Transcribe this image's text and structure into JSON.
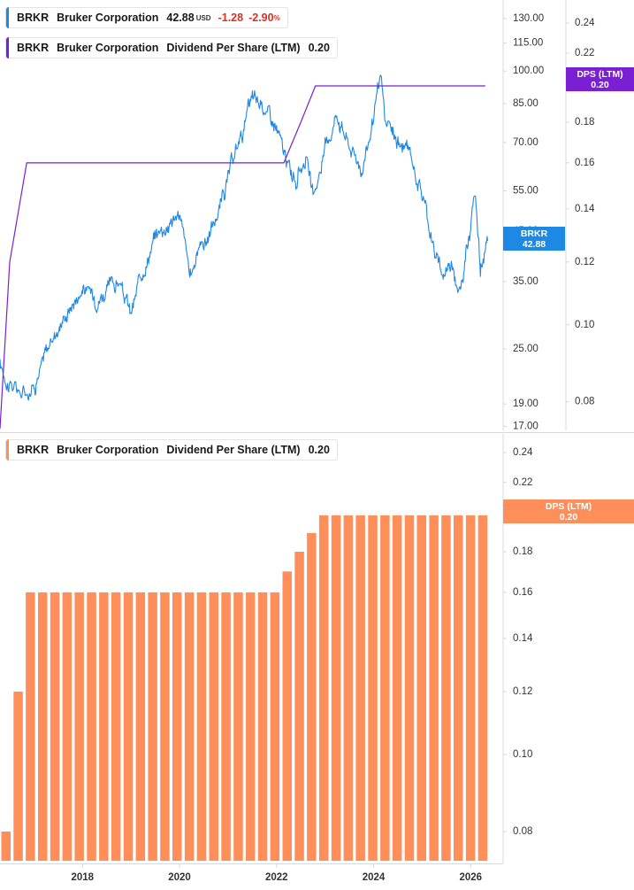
{
  "colors": {
    "price": "#1e88e5",
    "dps_line": "#7b1fd4",
    "dps_bars": "#ff8f5a",
    "negative": "#d93025",
    "axis_text": "#333333",
    "axis_line": "#d6d8dc"
  },
  "legends": {
    "price": {
      "ticker": "BRKR",
      "company": "Bruker Corporation",
      "price": "42.88",
      "currency": "USD",
      "change": "-1.28",
      "change_pct": "-2.90",
      "pct_sign": "%"
    },
    "dps_top": {
      "ticker": "BRKR",
      "company": "Bruker Corporation",
      "metric": "Dividend Per Share (LTM)",
      "value": "0.20"
    },
    "dps_bottom": {
      "ticker": "BRKR",
      "company": "Bruker Corporation",
      "metric": "Dividend Per Share (LTM)",
      "value": "0.20"
    }
  },
  "tags": {
    "price_label": "BRKR",
    "price_value": "42.88",
    "dps_label": "DPS (LTM)",
    "dps_value": "0.20",
    "dps_bottom_label": "DPS (LTM)",
    "dps_bottom_value": "0.20"
  },
  "chart_data": [
    {
      "type": "line",
      "x_range": [
        2016.3,
        2026.45
      ],
      "y_scale": "log",
      "ylim": [
        16.8,
        140
      ],
      "y_ticks": [
        17.0,
        19.0,
        25.0,
        35.0,
        45.0,
        55.0,
        70.0,
        85.0,
        100.0,
        115.0,
        130.0
      ],
      "y_tick_labels": [
        "17.00",
        "19.00",
        "25.00",
        "35.00",
        "45.00",
        "55.00",
        "70.00",
        "85.00",
        "100.00",
        "115.00",
        "130.00"
      ],
      "series": [
        {
          "name": "BRKR",
          "x": [
            2016.3,
            2016.5,
            2016.75,
            2017.0,
            2017.25,
            2017.5,
            2017.75,
            2018.0,
            2018.25,
            2018.5,
            2018.75,
            2019.0,
            2019.25,
            2019.5,
            2019.75,
            2020.0,
            2020.15,
            2020.2,
            2020.4,
            2020.6,
            2020.75,
            2021.0,
            2021.25,
            2021.5,
            2021.75,
            2022.0,
            2022.2,
            2022.4,
            2022.6,
            2022.75,
            2023.0,
            2023.25,
            2023.5,
            2023.75,
            2024.0,
            2024.15,
            2024.25,
            2024.5,
            2024.75,
            2025.0,
            2025.25,
            2025.4,
            2025.6,
            2025.8,
            2025.9,
            2026.1,
            2026.2,
            2026.35
          ],
          "y": [
            23.0,
            21.0,
            20.0,
            21.0,
            24.5,
            28.0,
            31.0,
            34.0,
            32.5,
            33.5,
            35.0,
            29.5,
            37.5,
            44.0,
            47.0,
            49.0,
            40.0,
            35.0,
            42.0,
            44.0,
            48.0,
            58.0,
            72.0,
            86.0,
            84.0,
            75.0,
            63.0,
            58.0,
            66.0,
            52.0,
            68.0,
            82.0,
            69.0,
            62.0,
            78.0,
            96.0,
            76.0,
            70.0,
            66.0,
            55.0,
            41.0,
            36.0,
            39.0,
            33.0,
            40.0,
            55.0,
            37.0,
            42.88
          ]
        }
      ]
    },
    {
      "type": "line",
      "y_scale": "log",
      "ylim": [
        0.074,
        0.254
      ],
      "y_ticks": [
        0.08,
        0.1,
        0.12,
        0.14,
        0.16,
        0.18,
        0.22,
        0.24
      ],
      "y_tick_labels": [
        "0.08",
        "0.10",
        "0.12",
        "0.14",
        "0.16",
        "0.18",
        "0.22",
        "0.24"
      ],
      "series": [
        {
          "name": "Dividend Per Share (LTM)",
          "x": [
            2016.3,
            2016.5,
            2016.85,
            2022.0,
            2022.15,
            2022.5,
            2022.8,
            2023.0,
            2026.3
          ],
          "y": [
            0.04,
            0.12,
            0.16,
            0.16,
            0.16,
            0.18,
            0.2,
            0.2,
            0.2
          ]
        }
      ]
    },
    {
      "type": "bar",
      "y_scale": "log",
      "ylim": [
        0.0735,
        0.25
      ],
      "y_ticks": [
        0.08,
        0.1,
        0.12,
        0.14,
        0.16,
        0.18,
        0.2,
        0.22,
        0.24
      ],
      "y_tick_labels": [
        "0.08",
        "0.10",
        "0.12",
        "0.14",
        "0.16",
        "0.18",
        "0.20",
        "0.22",
        "0.24"
      ],
      "x_ticks": [
        2018,
        2020,
        2022,
        2024,
        2026
      ],
      "x_tick_labels": [
        "2018",
        "2020",
        "2022",
        "2024",
        "2026"
      ],
      "series": [
        {
          "name": "Dividend Per Share (LTM)",
          "values": [
            0.08,
            0.12,
            0.16,
            0.16,
            0.16,
            0.16,
            0.16,
            0.16,
            0.16,
            0.16,
            0.16,
            0.16,
            0.16,
            0.16,
            0.16,
            0.16,
            0.16,
            0.16,
            0.16,
            0.16,
            0.16,
            0.16,
            0.16,
            0.17,
            0.18,
            0.19,
            0.2,
            0.2,
            0.2,
            0.2,
            0.2,
            0.2,
            0.2,
            0.2,
            0.2,
            0.2,
            0.2,
            0.2,
            0.2,
            0.2
          ]
        }
      ]
    }
  ]
}
